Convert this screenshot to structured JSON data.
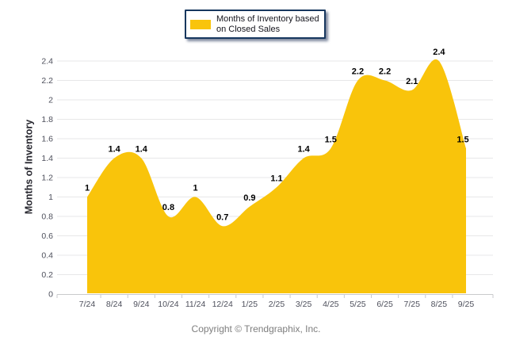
{
  "legend": {
    "line1": "Months of Inventory based",
    "line2": "on Closed Sales"
  },
  "footer": "Copyright © Trendgraphix, Inc.",
  "colors": {
    "background": "#FFFFFF",
    "series_fill": "#F9C40B",
    "legend_border": "#17375E",
    "grid_line": "#E7E7E8",
    "axis_line": "#C9CACC",
    "tick_label": "#4E505C",
    "data_label": "#000000",
    "footer_text": "#7E7E7E"
  },
  "chart_data": {
    "type": "area",
    "smooth": true,
    "series_name": "Months of Inventory based on Closed Sales",
    "categories": [
      "7/24",
      "8/24",
      "9/24",
      "10/24",
      "11/24",
      "12/24",
      "1/25",
      "2/25",
      "3/25",
      "4/25",
      "5/25",
      "6/25",
      "7/25",
      "8/25",
      "9/25"
    ],
    "values": [
      1,
      1.4,
      1.4,
      0.8,
      1,
      0.7,
      0.9,
      1.1,
      1.4,
      1.5,
      2.2,
      2.2,
      2.1,
      2.4,
      1.5
    ],
    "title": "",
    "xlabel": "",
    "ylabel": "Months of Inventory",
    "ylim": [
      0,
      2.4
    ],
    "ytick_step": 0.2,
    "grid": true,
    "legend_position": "top-center",
    "data_labels": true
  }
}
